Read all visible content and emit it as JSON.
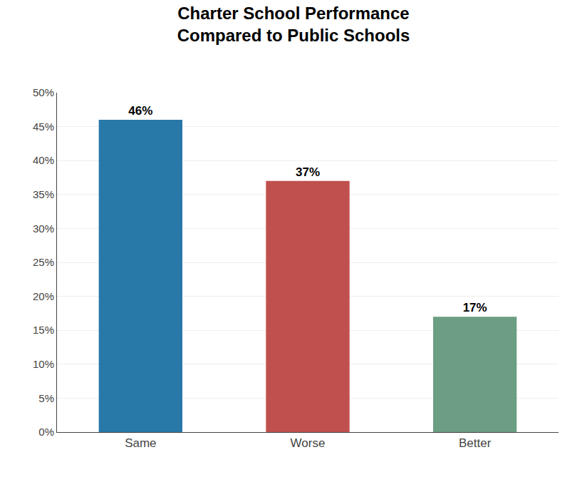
{
  "chart_data": {
    "type": "bar",
    "title": "Charter School Performance\nCompared to Public Schools",
    "categories": [
      "Same",
      "Worse",
      "Better"
    ],
    "values": [
      46,
      37,
      17
    ],
    "value_labels": [
      "46%",
      "37%",
      "17%"
    ],
    "data_labels": true,
    "colors": [
      "#2878A8",
      "#C0504D",
      "#6B9E82"
    ],
    "ylim": [
      0,
      50
    ],
    "yticks": [
      {
        "value": 0,
        "label": "0%"
      },
      {
        "value": 5,
        "label": "5%"
      },
      {
        "value": 10,
        "label": "10%"
      },
      {
        "value": 15,
        "label": "15%"
      },
      {
        "value": 20,
        "label": "20%"
      },
      {
        "value": 25,
        "label": "25%"
      },
      {
        "value": 30,
        "label": "30%"
      },
      {
        "value": 35,
        "label": "35%"
      },
      {
        "value": 40,
        "label": "40%"
      },
      {
        "value": 45,
        "label": "45%"
      },
      {
        "value": 50,
        "label": "50%"
      }
    ],
    "grid": true
  }
}
